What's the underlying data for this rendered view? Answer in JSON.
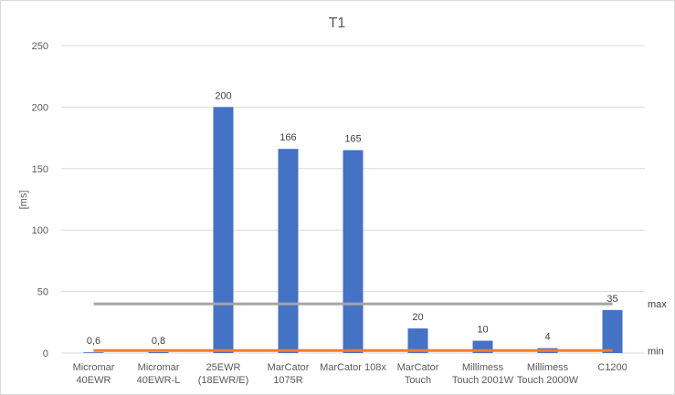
{
  "chart_data": {
    "type": "bar",
    "title": "T1",
    "ylabel": "[ms]",
    "xlabel": "",
    "ylim": [
      0,
      250
    ],
    "yticks": [
      0,
      50,
      100,
      150,
      200,
      250
    ],
    "grid": true,
    "categories": [
      [
        "Micromar",
        "40EWR"
      ],
      [
        "Micromar",
        "40EWR-L"
      ],
      [
        "25EWR",
        "(18EWR/E)"
      ],
      [
        "MarCator",
        "1075R"
      ],
      [
        "MarCator 108x"
      ],
      [
        "MarCator",
        "Touch"
      ],
      [
        "Millimess",
        "Touch 2001W"
      ],
      [
        "Millimess",
        "Touch 2000W"
      ],
      [
        "C1200"
      ]
    ],
    "values": [
      0.6,
      0.8,
      200,
      166,
      165,
      20,
      10,
      4,
      35
    ],
    "value_labels": [
      "0,6",
      "0,8",
      "200",
      "166",
      "165",
      "20",
      "10",
      "4",
      "35"
    ],
    "reference_lines": [
      {
        "label": "max",
        "value": 40,
        "color": "#a5a5a5"
      },
      {
        "label": "min",
        "value": 2,
        "color": "#ed7d31"
      }
    ],
    "colors": {
      "bar": "#4472c4"
    }
  }
}
